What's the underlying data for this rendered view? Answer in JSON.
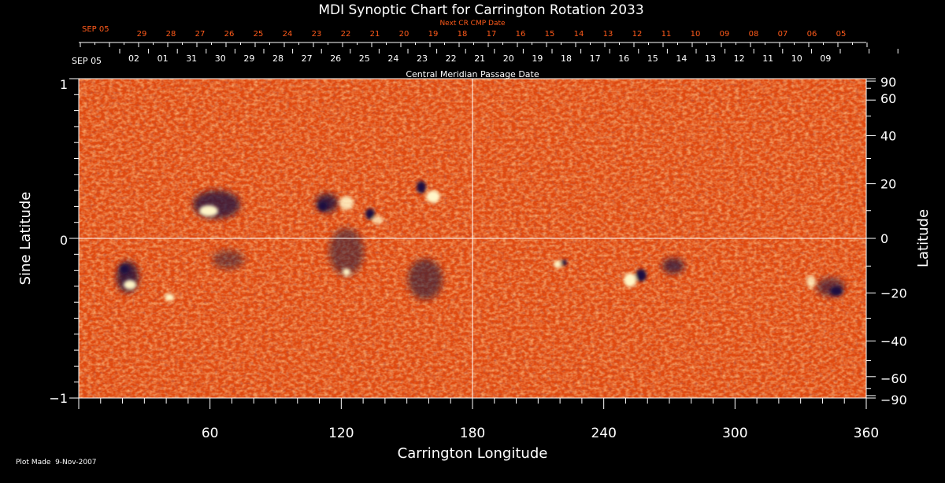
{
  "title": "MDI Synoptic Chart for Carrington Rotation 2033",
  "top_axis": {
    "label": "Next CR CMP Date",
    "month": "SEP 05",
    "dates": [
      "29",
      "28",
      "27",
      "26",
      "25",
      "24",
      "23",
      "22",
      "21",
      "20",
      "19",
      "18",
      "17",
      "16",
      "15",
      "14",
      "13",
      "12",
      "11",
      "10",
      "09",
      "08",
      "07",
      "06",
      "05"
    ]
  },
  "cmp_axis": {
    "label": "Central Meridian Passage Date",
    "month": "SEP 05",
    "dates": [
      "02",
      "01",
      "31",
      "30",
      "29",
      "28",
      "27",
      "26",
      "25",
      "24",
      "23",
      "22",
      "21",
      "20",
      "19",
      "18",
      "17",
      "16",
      "15",
      "14",
      "13",
      "12",
      "11",
      "10",
      "09"
    ]
  },
  "x_axis": {
    "label": "Carrington Longitude",
    "range": [
      0,
      360
    ],
    "ticks": [
      "60",
      "120",
      "180",
      "240",
      "300",
      "360"
    ]
  },
  "y_left": {
    "label": "Sine Latitude",
    "range": [
      -1,
      1
    ],
    "ticks": [
      "1",
      "0",
      "−1"
    ]
  },
  "y_right": {
    "label": "Latitude",
    "ticks": [
      "90",
      "60",
      "40",
      "20",
      "0",
      "−20",
      "−40",
      "−60",
      "−90"
    ]
  },
  "footer": "Plot Made  9-Nov-2007",
  "colors": {
    "background": "#000000",
    "map_base": "#e04a10",
    "positive": "#fff6c8",
    "negative": "#1a1040",
    "next_cr_text": "#ff5a1a",
    "text": "#ffffff"
  }
}
